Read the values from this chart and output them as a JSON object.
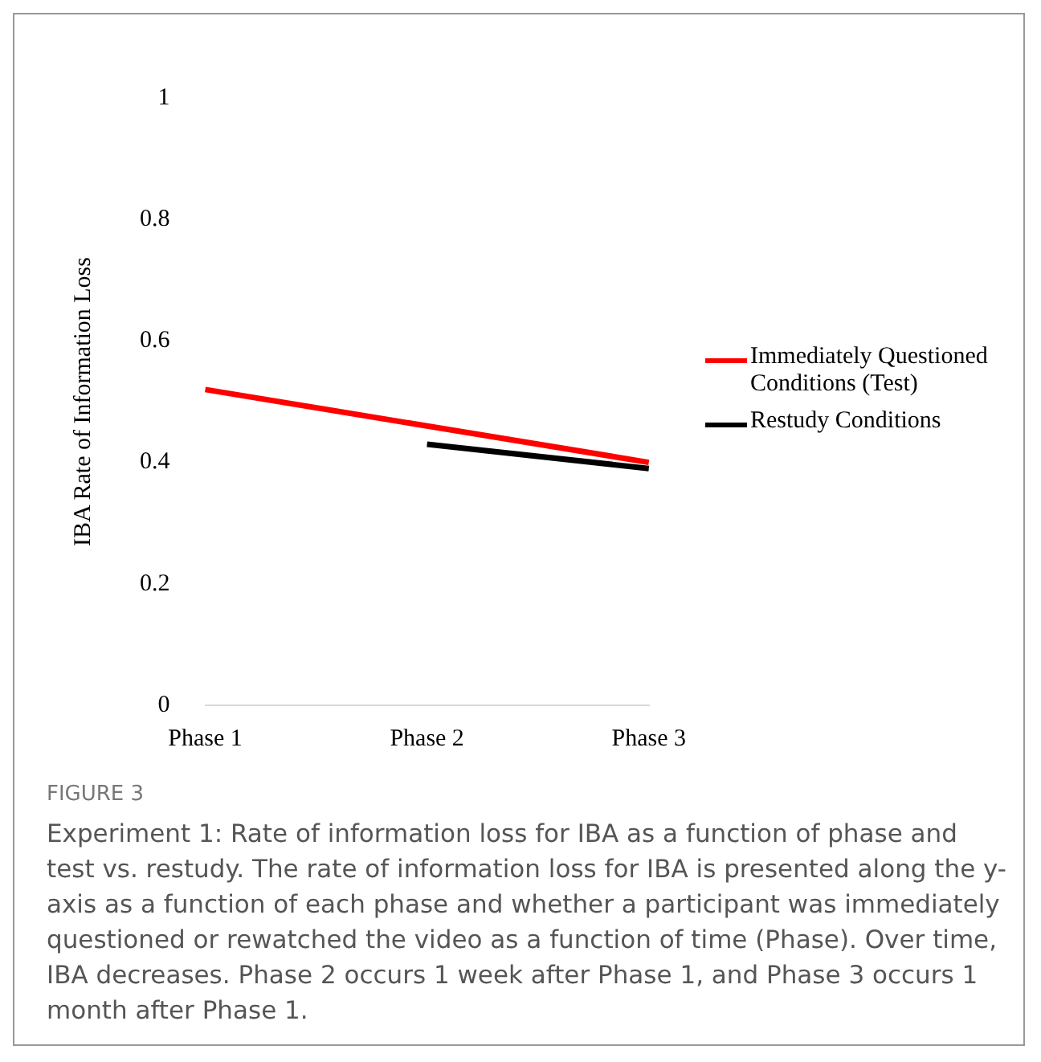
{
  "chart_data": {
    "type": "line",
    "title": "FIGURE 3",
    "ylabel": "IBA Rate of Information Loss",
    "categories": [
      "Phase 1",
      "Phase 2",
      "Phase 3"
    ],
    "series": [
      {
        "name": "Immediately Questioned Conditions (Test)",
        "color": "#ff0000",
        "values": [
          0.52,
          0.46,
          0.4
        ]
      },
      {
        "name": "Restudy Conditions",
        "color": "#000000",
        "values": [
          null,
          0.43,
          0.39
        ]
      }
    ],
    "ylim": [
      0,
      1
    ],
    "yticks": [
      0,
      0.2,
      0.4,
      0.6,
      0.8,
      1
    ],
    "legend": "right",
    "marker": "none",
    "line_style": "solid",
    "grid": false,
    "annotations": [
      "Experiment 1: Rate of information loss for IBA as a function of phase and test vs. restudy. The rate of information loss for IBA is presented along the y-axis as a function of each phase and whether a participant was immediately questioned or rewatched the video as a function of time (Phase). Over time, IBA decreases. Phase 2 occurs 1 week after Phase 1, and Phase 3 occurs 1 month after Phase 1."
    ]
  }
}
